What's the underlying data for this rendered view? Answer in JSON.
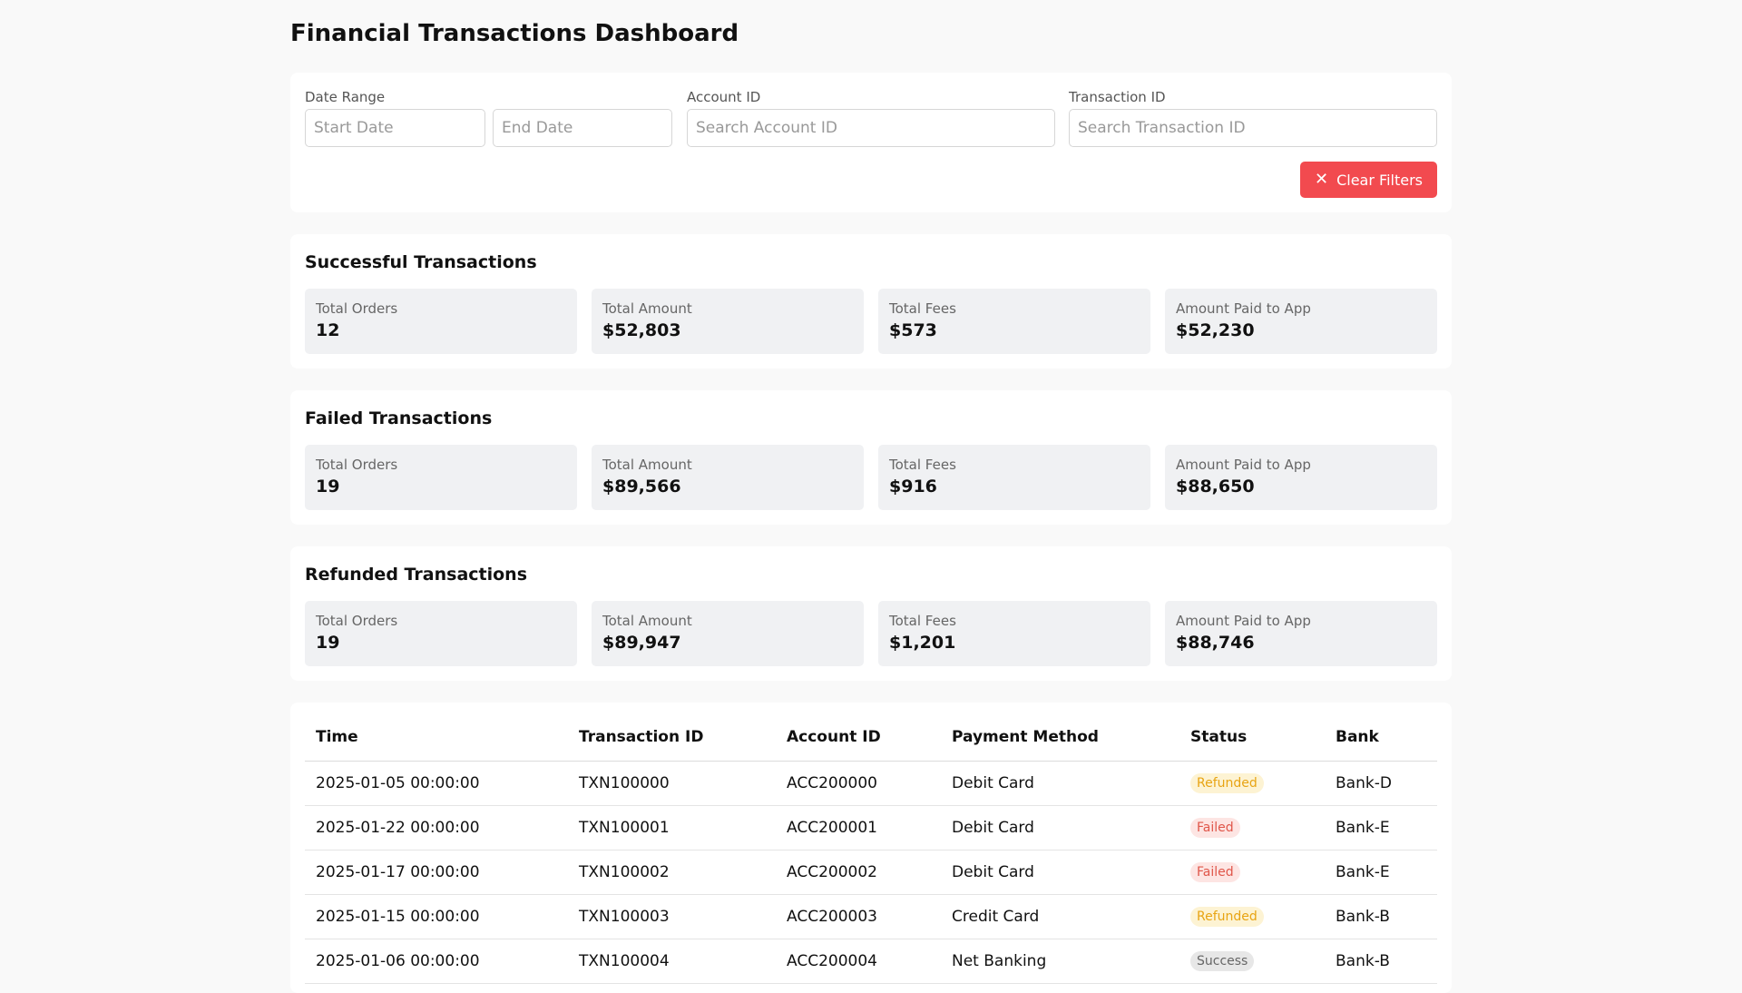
{
  "page": {
    "title": "Financial Transactions Dashboard"
  },
  "filters": {
    "date_range_label": "Date Range",
    "start_placeholder": "Start Date",
    "end_placeholder": "End Date",
    "account_label": "Account ID",
    "account_placeholder": "Search Account ID",
    "txn_label": "Transaction ID",
    "txn_placeholder": "Search Transaction ID",
    "clear_icon": "close-icon",
    "clear_label": "Clear Filters",
    "clear_color": "#f24a4f"
  },
  "sections": [
    {
      "title": "Successful Transactions",
      "stats": [
        {
          "label": "Total Orders",
          "value": "12"
        },
        {
          "label": "Total Amount",
          "value": "$52,803"
        },
        {
          "label": "Total Fees",
          "value": "$573"
        },
        {
          "label": "Amount Paid to App",
          "value": "$52,230"
        }
      ]
    },
    {
      "title": "Failed Transactions",
      "stats": [
        {
          "label": "Total Orders",
          "value": "19"
        },
        {
          "label": "Total Amount",
          "value": "$89,566"
        },
        {
          "label": "Total Fees",
          "value": "$916"
        },
        {
          "label": "Amount Paid to App",
          "value": "$88,650"
        }
      ]
    },
    {
      "title": "Refunded Transactions",
      "stats": [
        {
          "label": "Total Orders",
          "value": "19"
        },
        {
          "label": "Total Amount",
          "value": "$89,947"
        },
        {
          "label": "Total Fees",
          "value": "$1,201"
        },
        {
          "label": "Amount Paid to App",
          "value": "$88,746"
        }
      ]
    }
  ],
  "table": {
    "columns": [
      "Time",
      "Transaction ID",
      "Account ID",
      "Payment Method",
      "Status",
      "Bank"
    ],
    "rows": [
      [
        "2025-01-05 00:00:00",
        "TXN100000",
        "ACC200000",
        "Debit Card",
        "Refunded",
        "Bank-D"
      ],
      [
        "2025-01-22 00:00:00",
        "TXN100001",
        "ACC200001",
        "Debit Card",
        "Failed",
        "Bank-E"
      ],
      [
        "2025-01-17 00:00:00",
        "TXN100002",
        "ACC200002",
        "Debit Card",
        "Failed",
        "Bank-E"
      ],
      [
        "2025-01-15 00:00:00",
        "TXN100003",
        "ACC200003",
        "Credit Card",
        "Refunded",
        "Bank-B"
      ],
      [
        "2025-01-06 00:00:00",
        "TXN100004",
        "ACC200004",
        "Net Banking",
        "Success",
        "Bank-B"
      ]
    ],
    "status_colors": {
      "Refunded": "#e8a413",
      "Failed": "#e0564a",
      "Success": "#666666"
    }
  }
}
